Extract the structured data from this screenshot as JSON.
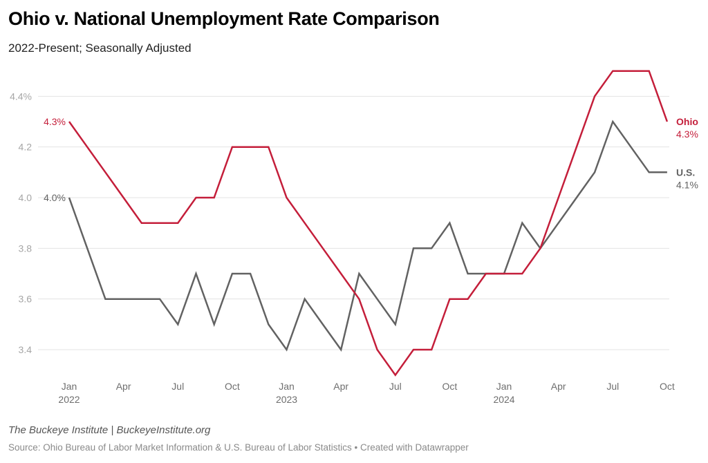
{
  "header": {
    "title": "Ohio v. National Unemployment Rate Comparison",
    "subtitle": "2022-Present; Seasonally Adjusted"
  },
  "footer": {
    "credit": "The Buckeye Institute | BuckeyeInstitute.org",
    "source": "Source: Ohio Bureau of Labor Market Information & U.S. Bureau of Labor Statistics • Created with Datawrapper"
  },
  "chart_data": {
    "type": "line",
    "title": "Ohio v. National Unemployment Rate Comparison",
    "subtitle": "2022-Present; Seasonally Adjusted",
    "xlabel": "",
    "ylabel": "",
    "ylim": [
      3.3,
      4.5
    ],
    "yticks": [
      {
        "value": 4.4,
        "label": "4.4%"
      },
      {
        "value": 4.2,
        "label": "4.2"
      },
      {
        "value": 4.0,
        "label": "4.0"
      },
      {
        "value": 3.8,
        "label": "3.8"
      },
      {
        "value": 3.6,
        "label": "3.6"
      },
      {
        "value": 3.4,
        "label": "3.4"
      }
    ],
    "grid": true,
    "x": [
      "Jan 2022",
      "Feb 2022",
      "Mar 2022",
      "Apr 2022",
      "May 2022",
      "Jun 2022",
      "Jul 2022",
      "Aug 2022",
      "Sep 2022",
      "Oct 2022",
      "Nov 2022",
      "Dec 2022",
      "Jan 2023",
      "Feb 2023",
      "Mar 2023",
      "Apr 2023",
      "May 2023",
      "Jun 2023",
      "Jul 2023",
      "Aug 2023",
      "Sep 2023",
      "Oct 2023",
      "Nov 2023",
      "Dec 2023",
      "Jan 2024",
      "Feb 2024",
      "Mar 2024",
      "Apr 2024",
      "May 2024",
      "Jun 2024",
      "Jul 2024",
      "Aug 2024",
      "Sep 2024",
      "Oct 2024"
    ],
    "xticks": [
      {
        "index": 0,
        "label": "Jan",
        "year": "2022"
      },
      {
        "index": 3,
        "label": "Apr",
        "year": ""
      },
      {
        "index": 6,
        "label": "Jul",
        "year": ""
      },
      {
        "index": 9,
        "label": "Oct",
        "year": ""
      },
      {
        "index": 12,
        "label": "Jan",
        "year": "2023"
      },
      {
        "index": 15,
        "label": "Apr",
        "year": ""
      },
      {
        "index": 18,
        "label": "Jul",
        "year": ""
      },
      {
        "index": 21,
        "label": "Oct",
        "year": ""
      },
      {
        "index": 24,
        "label": "Jan",
        "year": "2024"
      },
      {
        "index": 27,
        "label": "Apr",
        "year": ""
      },
      {
        "index": 30,
        "label": "Jul",
        "year": ""
      },
      {
        "index": 33,
        "label": "Oct",
        "year": ""
      }
    ],
    "series": [
      {
        "name": "Ohio",
        "color": "#c41e3a",
        "start_label": "4.3%",
        "end_label": "4.3%",
        "values": [
          4.3,
          4.2,
          4.1,
          4.0,
          3.9,
          3.9,
          3.9,
          4.0,
          4.0,
          4.2,
          4.2,
          4.2,
          4.0,
          3.9,
          3.8,
          3.7,
          3.6,
          3.4,
          3.3,
          3.4,
          3.4,
          3.6,
          3.6,
          3.7,
          3.7,
          3.7,
          3.8,
          4.0,
          4.2,
          4.4,
          4.5,
          4.5,
          4.5,
          4.3
        ]
      },
      {
        "name": "U.S.",
        "color": "#626262",
        "start_label": "4.0%",
        "end_label": "4.1%",
        "values": [
          4.0,
          3.8,
          3.6,
          3.6,
          3.6,
          3.6,
          3.5,
          3.7,
          3.5,
          3.7,
          3.7,
          3.5,
          3.4,
          3.6,
          3.5,
          3.4,
          3.7,
          3.6,
          3.5,
          3.8,
          3.8,
          3.9,
          3.7,
          3.7,
          3.7,
          3.9,
          3.8,
          3.9,
          4.0,
          4.1,
          4.3,
          4.2,
          4.1,
          4.1
        ]
      }
    ],
    "legend": "inline-end-labels"
  }
}
